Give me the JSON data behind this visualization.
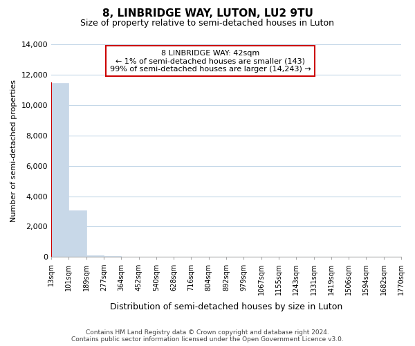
{
  "title": "8, LINBRIDGE WAY, LUTON, LU2 9TU",
  "subtitle": "Size of property relative to semi-detached houses in Luton",
  "xlabel": "Distribution of semi-detached houses by size in Luton",
  "ylabel": "Number of semi-detached properties",
  "bar_values": [
    11450,
    3050,
    130,
    50,
    30,
    20,
    15,
    10,
    8,
    6,
    5,
    4,
    3,
    3,
    2,
    2,
    2,
    1,
    1,
    1
  ],
  "bin_labels": [
    "13sqm",
    "101sqm",
    "189sqm",
    "277sqm",
    "364sqm",
    "452sqm",
    "540sqm",
    "628sqm",
    "716sqm",
    "804sqm",
    "892sqm",
    "979sqm",
    "1067sqm",
    "1155sqm",
    "1243sqm",
    "1331sqm",
    "1419sqm",
    "1506sqm",
    "1594sqm",
    "1682sqm",
    "1770sqm"
  ],
  "bar_color": "#c8d8e8",
  "highlight_bar_index": 0,
  "highlight_edge_color": "#cc0000",
  "annotation_box_text": "8 LINBRIDGE WAY: 42sqm\n← 1% of semi-detached houses are smaller (143)\n99% of semi-detached houses are larger (14,243) →",
  "ylim": [
    0,
    14000
  ],
  "yticks": [
    0,
    2000,
    4000,
    6000,
    8000,
    10000,
    12000,
    14000
  ],
  "footer_line1": "Contains HM Land Registry data © Crown copyright and database right 2024.",
  "footer_line2": "Contains public sector information licensed under the Open Government Licence v3.0.",
  "bg_color": "#ffffff",
  "grid_color": "#c5d8e8"
}
